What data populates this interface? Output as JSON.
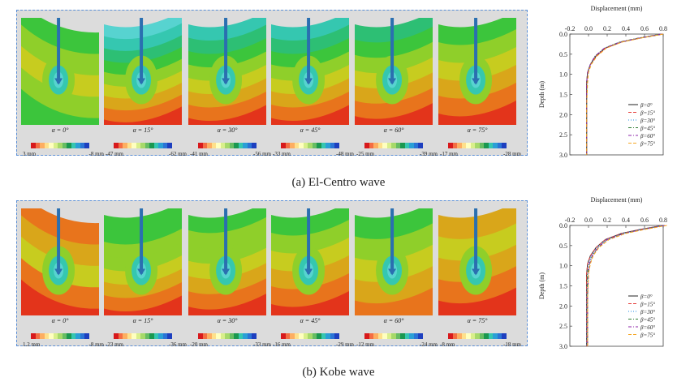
{
  "captions": {
    "a": "(a) El-Centro wave",
    "b": "(b) Kobe wave"
  },
  "alpha_prefix": "α = ",
  "beta_prefix": "β=",
  "colors": {
    "red": "#e3341b",
    "orange": "#e8741c",
    "yellow_orange": "#d9a61a",
    "yellow": "#c7cc1f",
    "lime": "#8fcf2a",
    "green": "#3cc53c",
    "teal_green": "#2dbf74",
    "cyan": "#35c7b0",
    "light_cyan": "#57d3d0",
    "blue": "#2a74d6",
    "dark_blue": "#1d3fbf",
    "pile": "#2a6fb0",
    "frame": "#5b8fd6",
    "panel_bg": "#dcdcdc"
  },
  "rows": [
    {
      "id": "el-centro",
      "panels": [
        {
          "alpha": "0°",
          "min": "3 mm",
          "max": "-8 mm"
        },
        {
          "alpha": "15°",
          "min": "-47 mm",
          "max": "-62 mm"
        },
        {
          "alpha": "30°",
          "min": "-41 mm",
          "max": "-56 mm"
        },
        {
          "alpha": "45°",
          "min": "-33 mm",
          "max": "-48 mm"
        },
        {
          "alpha": "60°",
          "min": "-25 mm",
          "max": "-39 mm"
        },
        {
          "alpha": "75°",
          "min": "-17 mm",
          "max": "-28 mm"
        }
      ]
    },
    {
      "id": "kobe",
      "panels": [
        {
          "alpha": "0°",
          "min": "1.2 mm",
          "max": "-8 mm"
        },
        {
          "alpha": "15°",
          "min": "-23 mm",
          "max": "-36 mm"
        },
        {
          "alpha": "30°",
          "min": "-20 mm",
          "max": "-33 mm"
        },
        {
          "alpha": "45°",
          "min": "-16 mm",
          "max": "-29 mm"
        },
        {
          "alpha": "60°",
          "min": "-12 mm",
          "max": "-24 mm"
        },
        {
          "alpha": "75°",
          "min": "-8 mm",
          "max": "-18 mm"
        }
      ]
    }
  ],
  "chart_data": [
    {
      "type": "line",
      "title": "",
      "xlabel": "Displacement (mm)",
      "ylabel": "Depth (m)",
      "xlim": [
        -0.2,
        0.8
      ],
      "ylim": [
        0.0,
        3.0
      ],
      "xticks": [
        "-0.2",
        "0.0",
        "0.2",
        "0.4",
        "0.6",
        "0.8"
      ],
      "yticks": [
        "0.0",
        "0.5",
        "1.0",
        "1.5",
        "2.0",
        "2.5",
        "3.0"
      ],
      "legend": "bottom-right",
      "series": [
        {
          "name": "0°",
          "style": "solid",
          "color": "#222222",
          "x": [
            0.8,
            0.55,
            0.35,
            0.18,
            0.08,
            0.02,
            -0.01,
            -0.02,
            -0.02,
            -0.02,
            -0.02
          ],
          "y": [
            0.0,
            0.1,
            0.2,
            0.35,
            0.55,
            0.75,
            0.95,
            1.2,
            1.8,
            2.4,
            3.0
          ]
        },
        {
          "name": "15°",
          "style": "dashed",
          "color": "#e53935",
          "x": [
            0.79,
            0.55,
            0.35,
            0.18,
            0.08,
            0.02,
            -0.01,
            -0.02,
            -0.02,
            -0.02,
            -0.02
          ],
          "y": [
            0.0,
            0.1,
            0.2,
            0.35,
            0.55,
            0.75,
            0.95,
            1.2,
            1.8,
            2.4,
            3.0
          ]
        },
        {
          "name": "30°",
          "style": "dotted",
          "color": "#1e88e5",
          "x": [
            0.78,
            0.54,
            0.34,
            0.17,
            0.07,
            0.02,
            -0.01,
            -0.02,
            -0.02,
            -0.02,
            -0.02
          ],
          "y": [
            0.0,
            0.1,
            0.2,
            0.35,
            0.55,
            0.75,
            0.95,
            1.2,
            1.8,
            2.4,
            3.0
          ]
        },
        {
          "name": "45°",
          "style": "dashdot",
          "color": "#2e7d32",
          "x": [
            0.77,
            0.53,
            0.33,
            0.17,
            0.07,
            0.02,
            -0.01,
            -0.02,
            -0.02,
            -0.02,
            -0.02
          ],
          "y": [
            0.0,
            0.1,
            0.2,
            0.35,
            0.55,
            0.75,
            0.95,
            1.2,
            1.8,
            2.4,
            3.0
          ]
        },
        {
          "name": "60°",
          "style": "dashdot",
          "color": "#8e24aa",
          "x": [
            0.78,
            0.54,
            0.34,
            0.17,
            0.07,
            0.02,
            -0.01,
            -0.02,
            -0.02,
            -0.02,
            -0.02
          ],
          "y": [
            0.0,
            0.1,
            0.2,
            0.35,
            0.55,
            0.75,
            0.95,
            1.2,
            1.8,
            2.4,
            3.0
          ]
        },
        {
          "name": "75°",
          "style": "dashed",
          "color": "#f5a623",
          "x": [
            0.8,
            0.56,
            0.36,
            0.19,
            0.09,
            0.03,
            0.0,
            -0.01,
            -0.02,
            -0.02,
            -0.02
          ],
          "y": [
            0.0,
            0.1,
            0.2,
            0.35,
            0.55,
            0.75,
            0.95,
            1.2,
            1.8,
            2.4,
            3.0
          ]
        }
      ]
    },
    {
      "type": "line",
      "title": "",
      "xlabel": "Displacement (mm)",
      "ylabel": "Depth (m)",
      "xlim": [
        -0.2,
        0.8
      ],
      "ylim": [
        0.0,
        3.0
      ],
      "xticks": [
        "-0.2",
        "0.0",
        "0.2",
        "0.4",
        "0.6",
        "0.8"
      ],
      "yticks": [
        "0.0",
        "0.5",
        "1.0",
        "1.5",
        "2.0",
        "2.5",
        "3.0"
      ],
      "legend": "bottom-right",
      "series": [
        {
          "name": "0°",
          "style": "solid",
          "color": "#222222",
          "x": [
            0.8,
            0.55,
            0.35,
            0.18,
            0.08,
            0.02,
            -0.01,
            -0.02,
            -0.02,
            -0.02,
            -0.02
          ],
          "y": [
            0.0,
            0.1,
            0.2,
            0.35,
            0.55,
            0.75,
            0.95,
            1.2,
            1.8,
            2.4,
            3.0
          ]
        },
        {
          "name": "15°",
          "style": "dashed",
          "color": "#e53935",
          "x": [
            0.79,
            0.55,
            0.35,
            0.18,
            0.08,
            0.02,
            -0.01,
            -0.02,
            -0.02,
            -0.02,
            -0.02
          ],
          "y": [
            0.0,
            0.1,
            0.2,
            0.35,
            0.55,
            0.75,
            0.95,
            1.2,
            1.8,
            2.4,
            3.0
          ]
        },
        {
          "name": "30°",
          "style": "dotted",
          "color": "#1e88e5",
          "x": [
            0.8,
            0.56,
            0.36,
            0.19,
            0.09,
            0.03,
            0.0,
            -0.01,
            -0.02,
            -0.02,
            -0.02
          ],
          "y": [
            0.0,
            0.1,
            0.2,
            0.35,
            0.55,
            0.75,
            0.95,
            1.2,
            1.8,
            2.4,
            3.0
          ]
        },
        {
          "name": "45°",
          "style": "dashdot",
          "color": "#2e7d32",
          "x": [
            0.81,
            0.57,
            0.37,
            0.2,
            0.1,
            0.04,
            0.01,
            -0.01,
            -0.01,
            -0.01,
            -0.01
          ],
          "y": [
            0.0,
            0.1,
            0.2,
            0.35,
            0.55,
            0.75,
            0.95,
            1.2,
            1.8,
            2.4,
            3.0
          ]
        },
        {
          "name": "60°",
          "style": "dashdot",
          "color": "#8e24aa",
          "x": [
            0.82,
            0.58,
            0.38,
            0.2,
            0.1,
            0.04,
            0.01,
            0.0,
            -0.01,
            -0.01,
            -0.01
          ],
          "y": [
            0.0,
            0.1,
            0.2,
            0.35,
            0.55,
            0.75,
            0.95,
            1.2,
            1.8,
            2.4,
            3.0
          ]
        },
        {
          "name": "75°",
          "style": "dashed",
          "color": "#f5a623",
          "x": [
            0.84,
            0.6,
            0.4,
            0.22,
            0.11,
            0.05,
            0.02,
            0.0,
            -0.01,
            -0.01,
            -0.01
          ],
          "y": [
            0.0,
            0.1,
            0.2,
            0.35,
            0.55,
            0.75,
            0.95,
            1.2,
            1.8,
            2.4,
            3.0
          ]
        }
      ]
    }
  ]
}
